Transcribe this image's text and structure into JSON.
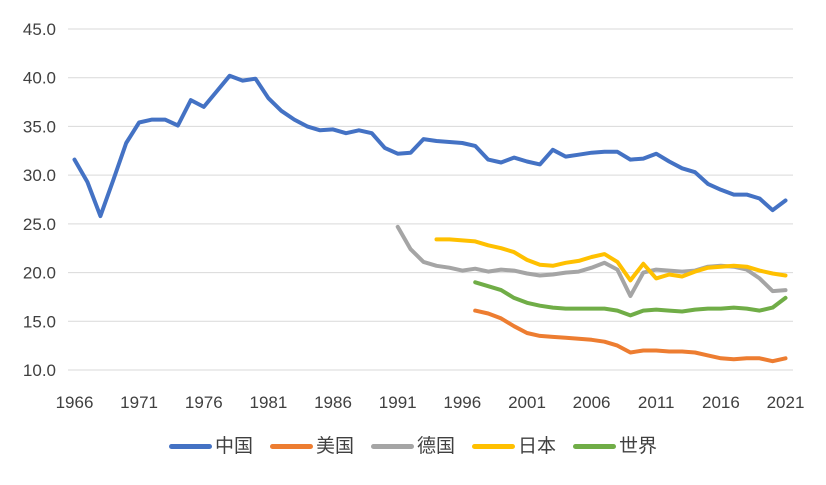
{
  "chart_data": {
    "type": "line",
    "title": "",
    "xlabel": "",
    "ylabel": "",
    "grid": true,
    "legend_position": "bottom",
    "gridline_color": "#D9D9D9",
    "tick_text_color": "#404040",
    "y_axis": {
      "min": 10,
      "max": 45,
      "tick_step": 5,
      "tick_labels": [
        "45.0",
        "40.0",
        "35.0",
        "30.0",
        "25.0",
        "20.0",
        "15.0",
        "10.0"
      ]
    },
    "x_axis": {
      "year_start": 1966,
      "year_end": 2021,
      "tick_labels": [
        "1966",
        "1971",
        "1976",
        "1981",
        "1986",
        "1991",
        "1996",
        "2001",
        "2006",
        "2011",
        "2016",
        "2021"
      ]
    },
    "series": [
      {
        "name": "中国",
        "color": "#4472C4",
        "start_year": 1966,
        "values": [
          31.6,
          29.3,
          25.8,
          29.5,
          33.3,
          35.4,
          35.7,
          35.7,
          35.1,
          37.7,
          37.0,
          38.6,
          40.2,
          39.7,
          39.9,
          37.9,
          36.6,
          35.7,
          35.0,
          34.6,
          34.7,
          34.3,
          34.6,
          34.3,
          32.8,
          32.2,
          32.3,
          33.7,
          33.5,
          33.4,
          33.3,
          33.0,
          31.6,
          31.3,
          31.8,
          31.4,
          31.1,
          32.6,
          31.9,
          32.1,
          32.3,
          32.4,
          32.4,
          31.6,
          31.7,
          32.2,
          31.4,
          30.7,
          30.3,
          29.1,
          28.5,
          28.0,
          28.0,
          27.6,
          26.4,
          27.4
        ]
      },
      {
        "name": "美国",
        "color": "#ED7D31",
        "start_year": 1997,
        "values": [
          16.1,
          15.8,
          15.3,
          14.5,
          13.8,
          13.5,
          13.4,
          13.3,
          13.2,
          13.1,
          12.9,
          12.5,
          11.8,
          12.0,
          12.0,
          11.9,
          11.9,
          11.8,
          11.5,
          11.2,
          11.1,
          11.2,
          11.2,
          10.9,
          11.2
        ]
      },
      {
        "name": "德国",
        "color": "#A5A5A5",
        "start_year": 1991,
        "values": [
          24.7,
          22.4,
          21.1,
          20.7,
          20.5,
          20.2,
          20.4,
          20.1,
          20.3,
          20.2,
          19.9,
          19.7,
          19.8,
          20.0,
          20.1,
          20.5,
          21.0,
          20.3,
          17.6,
          20.0,
          20.3,
          20.2,
          20.1,
          20.2,
          20.6,
          20.7,
          20.6,
          20.3,
          19.4,
          18.1,
          18.2
        ]
      },
      {
        "name": "日本",
        "color": "#FFC000",
        "start_year": 1994,
        "values": [
          23.4,
          23.4,
          23.3,
          23.2,
          22.8,
          22.5,
          22.1,
          21.3,
          20.8,
          20.7,
          21.0,
          21.2,
          21.6,
          21.9,
          21.1,
          19.2,
          20.9,
          19.4,
          19.8,
          19.6,
          20.1,
          20.5,
          20.6,
          20.7,
          20.6,
          20.2,
          19.9,
          19.7
        ]
      },
      {
        "name": "世界",
        "color": "#70AD47",
        "start_year": 1997,
        "values": [
          19.0,
          18.6,
          18.2,
          17.4,
          16.9,
          16.6,
          16.4,
          16.3,
          16.3,
          16.3,
          16.3,
          16.1,
          15.6,
          16.1,
          16.2,
          16.1,
          16.0,
          16.2,
          16.3,
          16.3,
          16.4,
          16.3,
          16.1,
          16.4,
          17.4
        ]
      }
    ]
  }
}
